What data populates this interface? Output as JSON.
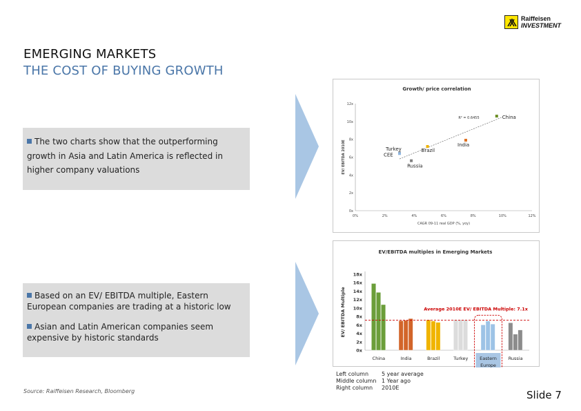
{
  "brand": {
    "line1": "Raiffeisen",
    "line2": "INVESTMENT",
    "color": "#ffe600"
  },
  "title": {
    "line1": "EMERGING MARKETS",
    "line2": "THE COST OF BUYING GROWTH"
  },
  "bullets": {
    "panel1": [
      "The two charts show that the outperforming growth in Asia and Latin America is reflected in higher company valuations"
    ],
    "panel2": [
      "Based on an EV/ EBITDA multiple, Eastern European companies are trading at a historic low",
      "Asian and Latin American companies seem expensive by historic standards"
    ]
  },
  "source": "Source: Raiffeisen Research, Bloomberg",
  "slide_label": "Slide 7",
  "legend": [
    {
      "left": "Left column",
      "right": "5 year average"
    },
    {
      "left": "Middle column",
      "right": "1 Year ago"
    },
    {
      "left": "Right column",
      "right": "2010E"
    }
  ],
  "chart_data": [
    {
      "type": "scatter",
      "title": "Growth/ price correlation",
      "xlabel": "CAGR 09-11 real GDP (%, yoy)",
      "ylabel": "EV/ EBITDA 2010E",
      "xlim": [
        0,
        12
      ],
      "ylim": [
        0,
        12
      ],
      "xticks": [
        "0%",
        "2%",
        "4%",
        "6%",
        "8%",
        "10%",
        "12%"
      ],
      "yticks": [
        "0x",
        "2x",
        "4x",
        "6x",
        "8x",
        "10x",
        "12x"
      ],
      "annotation": "R² = 0.6455",
      "points": [
        {
          "label": "China",
          "x": 9.6,
          "y": 10.6,
          "color": "#6b8e23"
        },
        {
          "label": "India",
          "x": 7.5,
          "y": 7.9,
          "color": "#e07020"
        },
        {
          "label": "Brazil",
          "x": 4.9,
          "y": 7.2,
          "color": "#f0b400"
        },
        {
          "label": "Turkey",
          "x": 3.0,
          "y": 6.5,
          "color": "#a0a0a0"
        },
        {
          "label": "CEE",
          "x": 3.0,
          "y": 6.4,
          "color": "#8fb6e0"
        },
        {
          "label": "Russia",
          "x": 3.8,
          "y": 5.6,
          "color": "#808080"
        }
      ],
      "trendline": {
        "x": [
          3.0,
          10.0
        ],
        "y": [
          5.8,
          10.5
        ]
      }
    },
    {
      "type": "bar",
      "title": "EV/EBITDA multiples in Emerging Markets",
      "ylabel": "EV/ EBITDA Multiple",
      "ylim": [
        0,
        18
      ],
      "yticks": [
        "0x",
        "2x",
        "4x",
        "6x",
        "8x",
        "10x",
        "12x",
        "14x",
        "16x",
        "18x"
      ],
      "categories": [
        "China",
        "India",
        "Brazil",
        "Turkey",
        "Eastern Europe",
        "Russia"
      ],
      "series": [
        {
          "name": "Left column",
          "values": [
            15.8,
            7.0,
            7.2,
            7.2,
            6.0,
            6.5
          ]
        },
        {
          "name": "Middle column",
          "values": [
            13.7,
            7.1,
            6.9,
            7.2,
            6.9,
            3.8
          ]
        },
        {
          "name": "Right column",
          "values": [
            10.8,
            7.5,
            6.6,
            7.2,
            6.2,
            4.8
          ]
        }
      ],
      "colors": [
        "#6b9e3a",
        "#d2652a",
        "#f0b400",
        "#dcdcdc",
        "#9dc3e6",
        "#8c8c8c"
      ],
      "average_line": {
        "value": 7.1,
        "label": "Average 2010E EV/ EBITDA Multiple: 7.1x",
        "color": "#cc0000"
      },
      "highlight": "Eastern Europe"
    }
  ]
}
